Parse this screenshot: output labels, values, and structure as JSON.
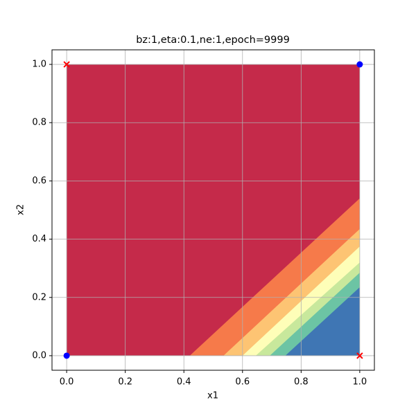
{
  "chart_data": {
    "type": "contour",
    "title": "bz:1,eta:0.1,ne:1,epoch=9999",
    "xlabel": "x1",
    "ylabel": "x2",
    "xlim": [
      -0.05,
      1.05
    ],
    "ylim": [
      -0.05,
      1.05
    ],
    "xticks": [
      {
        "value": 0,
        "label": "0.0"
      },
      0.2,
      0.4,
      0.6,
      0.8,
      {
        "value": 1,
        "label": "1.0"
      }
    ],
    "yticks": [
      {
        "value": 0,
        "label": "0.0"
      },
      0.2,
      0.4,
      0.6,
      0.8,
      {
        "value": 1,
        "label": "1.0"
      }
    ],
    "grid": true,
    "region": {
      "x1": [
        0,
        1
      ],
      "x2": [
        0,
        1
      ]
    },
    "band_colors": [
      "#c52a4a",
      "#f67a4a",
      "#fdc473",
      "#fefeb8",
      "#c8e89c",
      "#6cc4a4",
      "#3f76b4"
    ],
    "boundaries": [
      {
        "bottom_x1": 0.42,
        "right_x2": 0.54
      },
      {
        "bottom_x1": 0.535,
        "right_x2": 0.435
      },
      {
        "bottom_x1": 0.6,
        "right_x2": 0.375
      },
      {
        "bottom_x1": 0.645,
        "right_x2": 0.32
      },
      {
        "bottom_x1": 0.693,
        "right_x2": 0.285
      },
      {
        "bottom_x1": 0.746,
        "right_x2": 0.235
      }
    ],
    "series": [
      {
        "color": "#ff0000",
        "marker": "x",
        "x": [
          0,
          1
        ],
        "y": [
          1,
          0
        ]
      },
      {
        "color": "#0000ff",
        "marker": "o",
        "x": [
          0,
          1
        ],
        "y": [
          0,
          1
        ]
      }
    ]
  }
}
